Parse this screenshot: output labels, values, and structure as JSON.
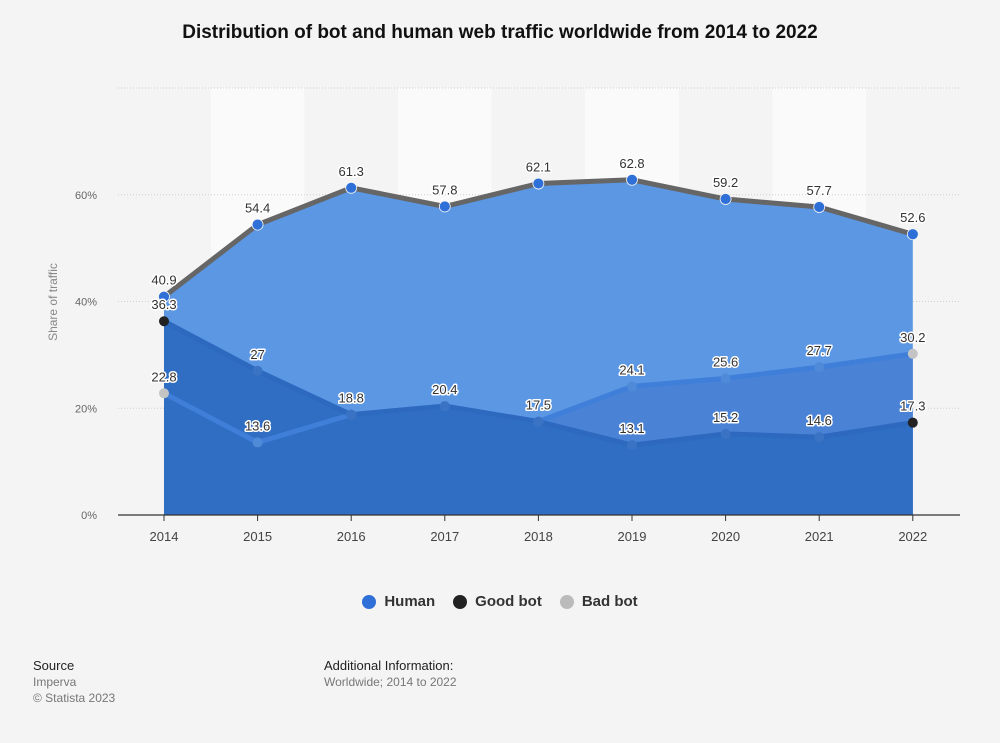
{
  "chart_data": {
    "type": "area",
    "title": "Distribution of bot and human web traffic worldwide from 2014 to 2022",
    "xlabel": "",
    "ylabel": "Share of traffic",
    "ylim": [
      0,
      80
    ],
    "yticks": [
      "0%",
      "20%",
      "40%",
      "60%"
    ],
    "grid": true,
    "legend_position": "bottom",
    "categories": [
      "2014",
      "2015",
      "2016",
      "2017",
      "2018",
      "2019",
      "2020",
      "2021",
      "2022"
    ],
    "series": [
      {
        "name": "Human",
        "color": "#2f6fd8",
        "values": [
          40.9,
          54.4,
          61.3,
          57.8,
          62.1,
          62.8,
          59.2,
          57.7,
          52.6
        ]
      },
      {
        "name": "Good bot",
        "color": "#222222",
        "values": [
          36.3,
          27,
          18.8,
          20.4,
          17.5,
          13.1,
          15.2,
          14.6,
          17.3
        ]
      },
      {
        "name": "Bad bot",
        "color": "#bbbbbb",
        "values": [
          22.8,
          13.6,
          18.8,
          20.4,
          17.5,
          24.1,
          25.6,
          27.7,
          30.2
        ]
      }
    ]
  },
  "legend": {
    "human": "Human",
    "good_bot": "Good bot",
    "bad_bot": "Bad bot"
  },
  "footer": {
    "source_heading": "Source",
    "source_name": "Imperva",
    "copyright": "© Statista 2023",
    "info_heading": "Additional Information:",
    "info_text": "Worldwide; 2014 to 2022"
  }
}
